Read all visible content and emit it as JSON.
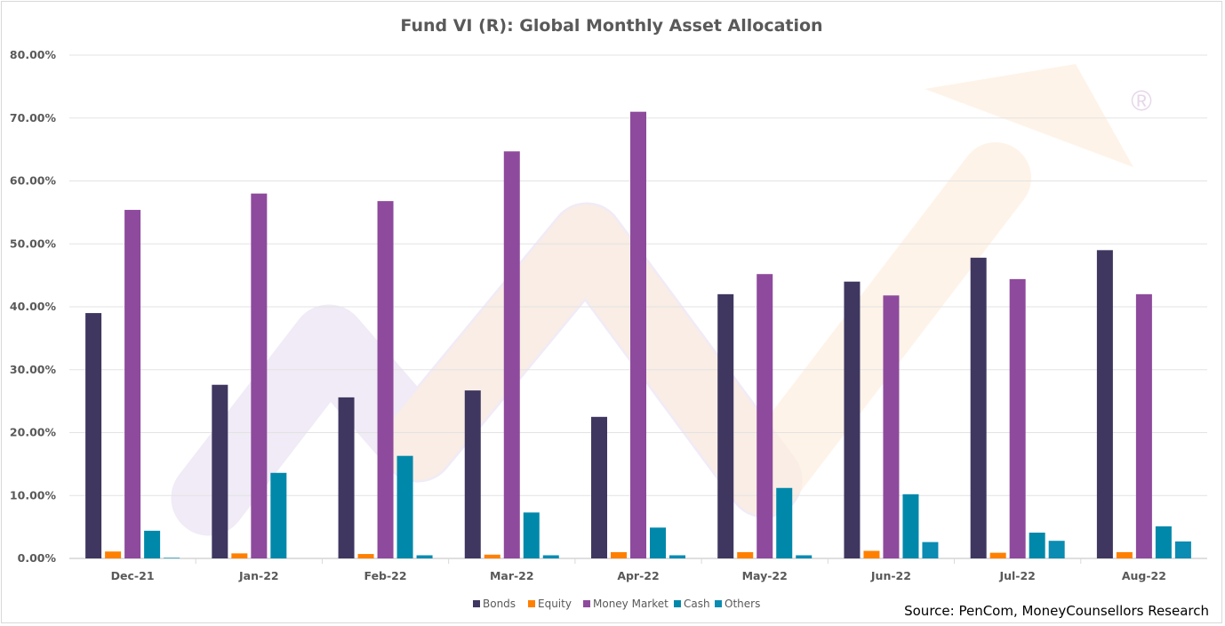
{
  "chart_data": {
    "type": "bar",
    "title": "Fund VI (R): Global Monthly Asset Allocation",
    "xlabel": "",
    "ylabel": "",
    "ylim": [
      0,
      80
    ],
    "yticks": [
      "0.00%",
      "10.00%",
      "20.00%",
      "30.00%",
      "40.00%",
      "50.00%",
      "60.00%",
      "70.00%",
      "80.00%"
    ],
    "grid": true,
    "legend_position": "bottom",
    "categories": [
      "Dec-21",
      "Jan-22",
      "Feb-22",
      "Mar-22",
      "Apr-22",
      "May-22",
      "Jun-22",
      "Jul-22",
      "Aug-22"
    ],
    "series": [
      {
        "name": "Bonds",
        "color": "#3f3760",
        "values": [
          39.0,
          27.6,
          25.6,
          26.7,
          22.5,
          42.0,
          44.0,
          47.8,
          49.0
        ]
      },
      {
        "name": "Equity",
        "color": "#ff8000",
        "values": [
          1.1,
          0.8,
          0.7,
          0.6,
          1.0,
          1.0,
          1.2,
          0.9,
          1.0
        ]
      },
      {
        "name": "Money Market",
        "color": "#8e4a9c",
        "values": [
          55.4,
          58.0,
          56.8,
          64.7,
          71.0,
          45.2,
          41.8,
          44.4,
          42.0
        ]
      },
      {
        "name": "Cash",
        "color": "#0088aa",
        "values": [
          4.4,
          13.6,
          16.3,
          7.3,
          4.9,
          11.2,
          10.2,
          4.1,
          5.1
        ]
      },
      {
        "name": "Others",
        "color": "#0b8cb2",
        "values": [
          0.1,
          0.0,
          0.5,
          0.5,
          0.5,
          0.5,
          2.6,
          2.8,
          2.7
        ]
      }
    ],
    "source": "Source: PenCom, MoneyCounsellors Research",
    "watermark": "®"
  }
}
